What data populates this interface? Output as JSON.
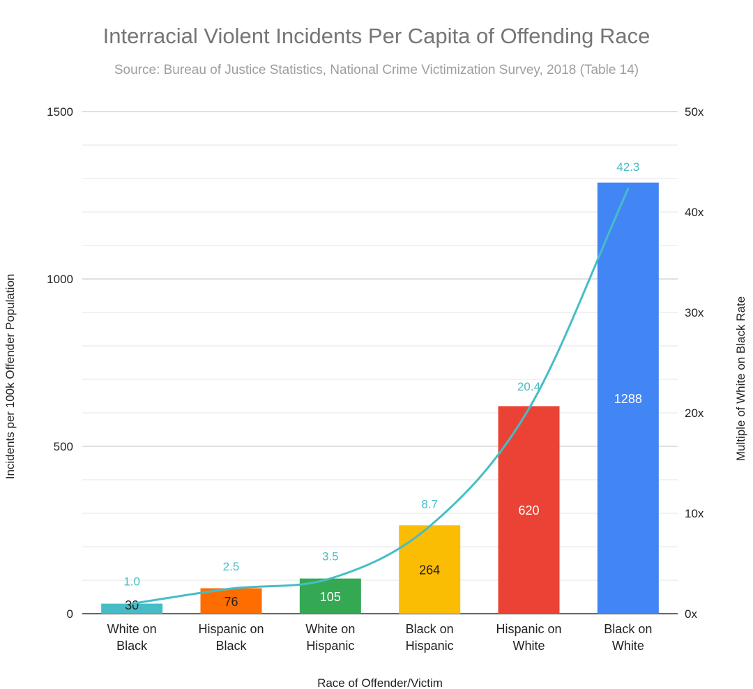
{
  "chart_data": {
    "type": "bar",
    "title": "Interracial Violent Incidents Per Capita of Offending Race",
    "subtitle": "Source: Bureau of Justice Statistics, National Crime Victimization Survey, 2018 (Table 14)",
    "xlabel": "Race of Offender/Victim",
    "ylabel": "Incidents per 100k Offender Population",
    "y2label": "Multiple of White on Black Rate",
    "ylim": [
      0,
      1500
    ],
    "y2lim": [
      0,
      50
    ],
    "yticks": [
      "0",
      "500",
      "1000",
      "1500"
    ],
    "y2ticks": [
      "0x",
      "10x",
      "20x",
      "30x",
      "40x",
      "50x"
    ],
    "grid": true,
    "categories": [
      [
        "White on",
        "Black"
      ],
      [
        "Hispanic on",
        "Black"
      ],
      [
        "White on",
        "Hispanic"
      ],
      [
        "Black on",
        "Hispanic"
      ],
      [
        "Hispanic on",
        "White"
      ],
      [
        "Black on",
        "White"
      ]
    ],
    "series": [
      {
        "type": "bar",
        "axis": "left",
        "values": [
          30,
          76,
          105,
          264,
          620,
          1288
        ],
        "labels": [
          "30",
          "76",
          "105",
          "264",
          "620",
          "1288"
        ],
        "colors": [
          "#46bdc6",
          "#ff6d01",
          "#34a853",
          "#fbbc04",
          "#ea4335",
          "#4285f4"
        ],
        "label_colors": [
          "#222222",
          "#222222",
          "#ffffff",
          "#222222",
          "#ffffff",
          "#ffffff"
        ]
      },
      {
        "type": "line",
        "axis": "right",
        "smooth": true,
        "values": [
          1.0,
          2.5,
          3.5,
          8.7,
          20.4,
          42.3
        ],
        "labels": [
          "1.0",
          "2.5",
          "3.5",
          "8.7",
          "20.4",
          "42.3"
        ],
        "color": "#46bdc6"
      }
    ]
  }
}
